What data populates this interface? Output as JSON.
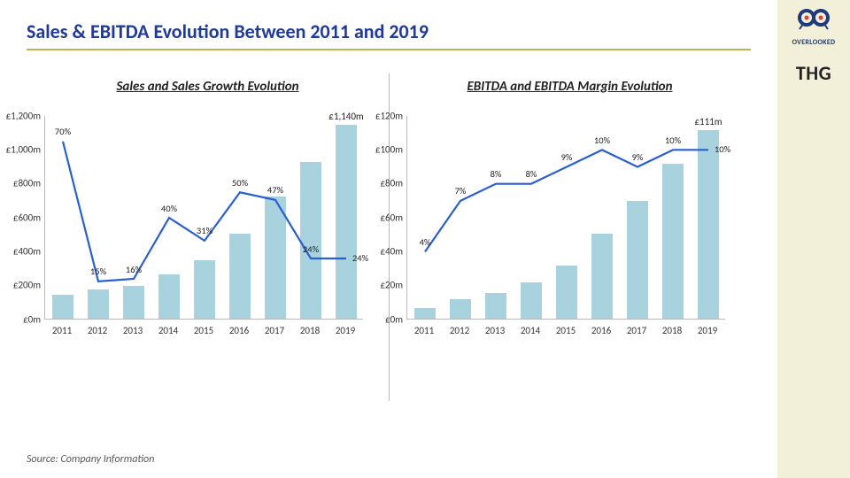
{
  "page": {
    "title": "Sales & EBITDA Evolution Between 2011 and 2019",
    "source": "Source: Company Information"
  },
  "branding": {
    "logo1_label": "OVERLOOKED",
    "logo2_text": "THG"
  },
  "colors": {
    "title": "#1f3a9a",
    "rule": "#c7b050",
    "bar": "#a8d3de",
    "line": "#2a5fd0",
    "axis": "#bbbbbb",
    "sidebar_bg": "#f3f0d9",
    "text": "#222222"
  },
  "chart_left": {
    "title": "Sales and Sales Growth Evolution",
    "categories": [
      "2011",
      "2012",
      "2013",
      "2014",
      "2015",
      "2016",
      "2017",
      "2018",
      "2019"
    ],
    "bar_values": [
      140,
      170,
      190,
      260,
      340,
      500,
      720,
      920,
      1140
    ],
    "line_values": [
      70,
      15,
      16,
      40,
      31,
      50,
      47,
      24,
      24
    ],
    "callout_index": 8,
    "callout_text": "£1,140m",
    "y_min": 0,
    "y_max": 1200,
    "y_step": 200,
    "y_prefix": "£",
    "y_suffix": "m",
    "line_max": 80,
    "label_fontsize": 10.5,
    "line_width": 2.2
  },
  "chart_right": {
    "title": "EBITDA and EBITDA Margin Evolution",
    "categories": [
      "2011",
      "2012",
      "2013",
      "2014",
      "2015",
      "2016",
      "2017",
      "2018",
      "2019"
    ],
    "bar_values": [
      6,
      11,
      15,
      21,
      31,
      50,
      69,
      91,
      111
    ],
    "line_values": [
      4,
      7,
      8,
      8,
      9,
      10,
      9,
      10,
      10
    ],
    "callout_index": 8,
    "callout_text": "£111m",
    "y_min": 0,
    "y_max": 120,
    "y_step": 20,
    "y_prefix": "£",
    "y_suffix": "m",
    "line_max": 12,
    "label_fontsize": 10.5,
    "line_width": 2.2
  }
}
